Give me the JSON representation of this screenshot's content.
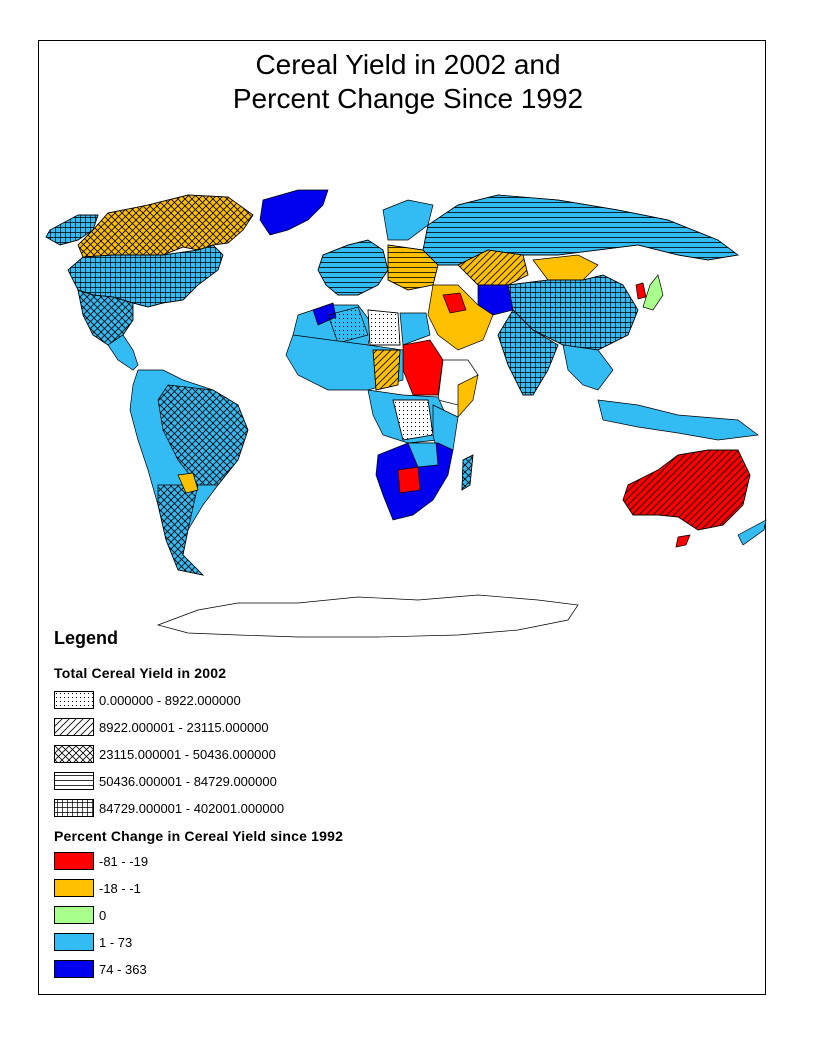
{
  "map": {
    "title_lines": [
      "Cereal Yield in 2002 and",
      "Percent Change Since 1992"
    ]
  },
  "legend": {
    "title": "Legend",
    "yield_section": {
      "title": "Total Cereal Yield in 2002",
      "items": [
        {
          "label": "0.000000 - 8922.000000",
          "pattern": "dots"
        },
        {
          "label": "8922.000001 - 23115.000000",
          "pattern": "diagonal"
        },
        {
          "label": "23115.000001 - 50436.000000",
          "pattern": "crosshatch"
        },
        {
          "label": "50436.000001 - 84729.000000",
          "pattern": "horizontal"
        },
        {
          "label": "84729.000001 - 402001.000000",
          "pattern": "grid"
        }
      ]
    },
    "change_section": {
      "title": "Percent Change in Cereal Yield since 1992",
      "items": [
        {
          "label": "-81 - -19",
          "color": "#ff0000"
        },
        {
          "label": "-18 - -1",
          "color": "#ffc000"
        },
        {
          "label": "0",
          "color": "#a8ff8c"
        },
        {
          "label": "1 - 73",
          "color": "#33bbf4"
        },
        {
          "label": "74 - 363",
          "color": "#0000ee"
        }
      ]
    }
  }
}
